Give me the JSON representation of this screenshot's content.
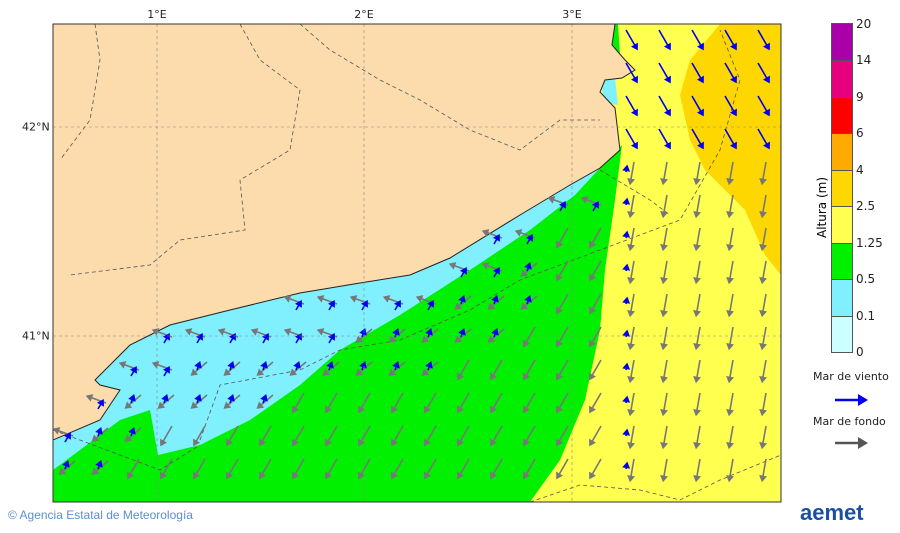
{
  "map": {
    "lon_labels": [
      "1°E",
      "2°E",
      "3°E"
    ],
    "lat_labels": [
      "42°N",
      "41°N"
    ],
    "colors": {
      "land": "#fcdcac",
      "sea_0": "#ccffff",
      "sea_0_1": "#80f0ff",
      "sea_0_5": "#00f000",
      "sea_1_25": "#ffff50",
      "sea_2_5": "#ffd700",
      "sea_4": "#ffaa00",
      "wind_arrow": "#0000ee",
      "swell_arrow": "#777777"
    }
  },
  "legend": {
    "title": "Altura (m)",
    "ticks": [
      "0",
      "0.1",
      "0.5",
      "1.25",
      "2.5",
      "4",
      "6",
      "9",
      "14",
      "20"
    ],
    "colors": [
      "#ccffff",
      "#80f0ff",
      "#00f000",
      "#ffff50",
      "#ffd700",
      "#ffaa00",
      "#ff0000",
      "#e6007e",
      "#aa00aa"
    ],
    "wind_sea": "Mar de viento",
    "swell": "Mar de fondo"
  },
  "footer": {
    "copyright": "© Agencia Estatal de Meteorología",
    "logo": "aemet"
  }
}
